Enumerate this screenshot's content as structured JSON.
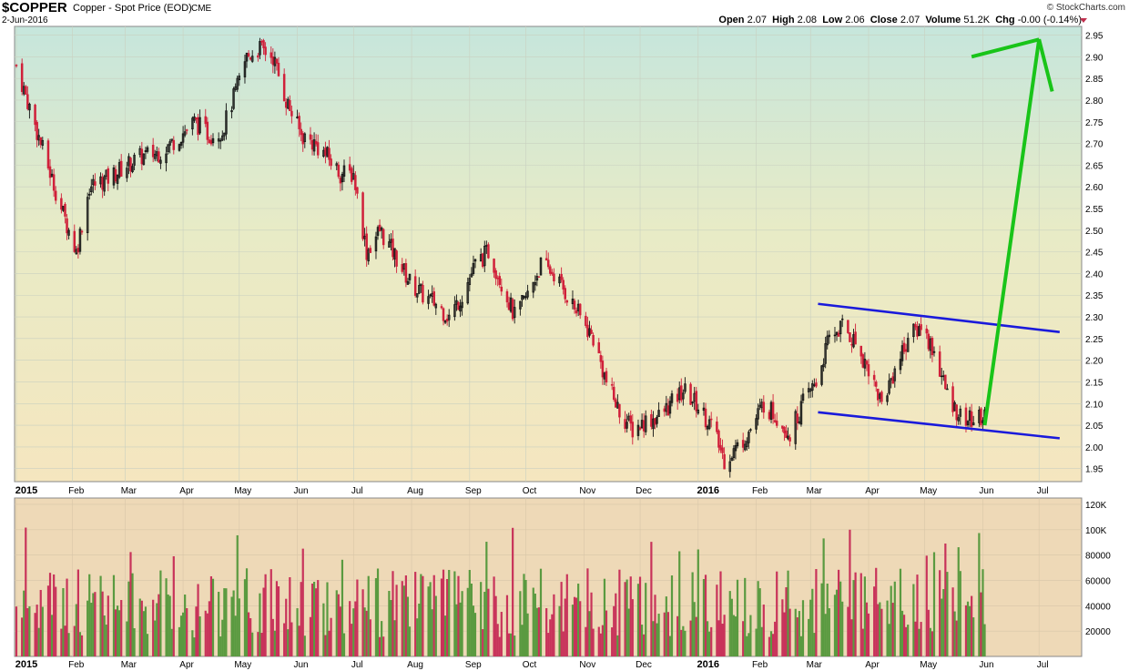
{
  "header": {
    "symbol": "$COPPER",
    "description": "Copper - Spot Price (EOD)",
    "exchange": "CME",
    "date": "2-Jun-2016",
    "credit": "© StockCharts.com",
    "open_label": "Open",
    "open": "2.07",
    "high_label": "High",
    "high": "2.08",
    "low_label": "Low",
    "low": "2.06",
    "close_label": "Close",
    "close": "2.07",
    "volume_label": "Volume",
    "volume": "51.2K",
    "chg_label": "Chg",
    "chg": "-0.00 (-0.14%)"
  },
  "colors": {
    "up": "#2a9a2a",
    "down": "#d0203a",
    "channel": "#1a1adb",
    "projection": "#19c419",
    "vol_up": "#5a9a40",
    "vol_down": "#c8335a"
  },
  "chart_data": [
    {
      "type": "candlestick",
      "ylim": [
        1.92,
        2.97
      ],
      "yticks": [
        "2.95",
        "2.90",
        "2.85",
        "2.80",
        "2.75",
        "2.70",
        "2.65",
        "2.60",
        "2.55",
        "2.50",
        "2.45",
        "2.40",
        "2.35",
        "2.30",
        "2.25",
        "2.20",
        "2.15",
        "2.10",
        "2.05",
        "2.00",
        "1.95"
      ],
      "xticks": [
        "2015",
        "Feb",
        "Mar",
        "Apr",
        "May",
        "Jun",
        "Jul",
        "Aug",
        "Sep",
        "Oct",
        "Nov",
        "Dec",
        "2016",
        "Feb",
        "Mar",
        "Apr",
        "May",
        "Jun",
        "Jul"
      ],
      "grid": true,
      "x_start": "2015-01-02",
      "approx_closes": [
        [
          "2015-01-02",
          2.88
        ],
        [
          "2015-01-15",
          2.7
        ],
        [
          "2015-01-26",
          2.55
        ],
        [
          "2015-02-03",
          2.45
        ],
        [
          "2015-02-10",
          2.6
        ],
        [
          "2015-02-20",
          2.62
        ],
        [
          "2015-03-02",
          2.65
        ],
        [
          "2015-03-10",
          2.67
        ],
        [
          "2015-03-20",
          2.68
        ],
        [
          "2015-03-31",
          2.72
        ],
        [
          "2015-04-07",
          2.75
        ],
        [
          "2015-04-15",
          2.72
        ],
        [
          "2015-04-22",
          2.73
        ],
        [
          "2015-04-30",
          2.83
        ],
        [
          "2015-05-05",
          2.9
        ],
        [
          "2015-05-12",
          2.92
        ],
        [
          "2015-05-19",
          2.9
        ],
        [
          "2015-05-26",
          2.8
        ],
        [
          "2015-06-03",
          2.72
        ],
        [
          "2015-06-10",
          2.7
        ],
        [
          "2015-06-17",
          2.67
        ],
        [
          "2015-06-24",
          2.63
        ],
        [
          "2015-07-01",
          2.63
        ],
        [
          "2015-07-08",
          2.45
        ],
        [
          "2015-07-15",
          2.5
        ],
        [
          "2015-07-22",
          2.45
        ],
        [
          "2015-07-31",
          2.38
        ],
        [
          "2015-08-07",
          2.35
        ],
        [
          "2015-08-14",
          2.33
        ],
        [
          "2015-08-21",
          2.3
        ],
        [
          "2015-08-28",
          2.35
        ],
        [
          "2015-09-04",
          2.42
        ],
        [
          "2015-09-11",
          2.45
        ],
        [
          "2015-09-18",
          2.38
        ],
        [
          "2015-09-25",
          2.3
        ],
        [
          "2015-10-02",
          2.35
        ],
        [
          "2015-10-09",
          2.42
        ],
        [
          "2015-10-16",
          2.4
        ],
        [
          "2015-10-23",
          2.35
        ],
        [
          "2015-10-30",
          2.3
        ],
        [
          "2015-11-06",
          2.25
        ],
        [
          "2015-11-13",
          2.15
        ],
        [
          "2015-11-20",
          2.08
        ],
        [
          "2015-11-27",
          2.04
        ],
        [
          "2015-12-04",
          2.06
        ],
        [
          "2015-12-11",
          2.07
        ],
        [
          "2015-12-18",
          2.1
        ],
        [
          "2015-12-24",
          2.13
        ],
        [
          "2015-12-31",
          2.1
        ],
        [
          "2016-01-08",
          2.05
        ],
        [
          "2016-01-15",
          1.97
        ],
        [
          "2016-01-22",
          2.0
        ],
        [
          "2016-01-29",
          2.04
        ],
        [
          "2016-02-05",
          2.1
        ],
        [
          "2016-02-12",
          2.07
        ],
        [
          "2016-02-19",
          2.03
        ],
        [
          "2016-02-26",
          2.1
        ],
        [
          "2016-03-04",
          2.15
        ],
        [
          "2016-03-11",
          2.25
        ],
        [
          "2016-03-18",
          2.28
        ],
        [
          "2016-03-25",
          2.24
        ],
        [
          "2016-04-01",
          2.18
        ],
        [
          "2016-04-08",
          2.1
        ],
        [
          "2016-04-15",
          2.18
        ],
        [
          "2016-04-22",
          2.25
        ],
        [
          "2016-04-29",
          2.28
        ],
        [
          "2016-05-06",
          2.22
        ],
        [
          "2016-05-13",
          2.12
        ],
        [
          "2016-05-20",
          2.07
        ],
        [
          "2016-05-27",
          2.06
        ],
        [
          "2016-06-02",
          2.07
        ]
      ],
      "projection_path": [
        [
          "2016-06-02",
          2.05
        ],
        [
          "2016-07-01",
          2.94
        ],
        [
          "2016-07-08",
          2.82
        ]
      ],
      "projection_stub": [
        [
          "2016-05-26",
          2.9
        ],
        [
          "2016-07-01",
          2.94
        ]
      ],
      "channel_upper": [
        [
          "2016-03-05",
          2.33
        ],
        [
          "2016-07-12",
          2.265
        ]
      ],
      "channel_lower": [
        [
          "2016-03-05",
          2.08
        ],
        [
          "2016-07-12",
          2.02
        ]
      ]
    },
    {
      "type": "bar",
      "name": "Volume",
      "ylim": [
        0,
        125000
      ],
      "yticks": [
        "120K",
        "100K",
        "80000",
        "60000",
        "40000",
        "20000"
      ],
      "xticks": [
        "2015",
        "Feb",
        "Mar",
        "Apr",
        "May",
        "Jun",
        "Jul",
        "Aug",
        "Sep",
        "Oct",
        "Nov",
        "Dec",
        "2016",
        "Feb",
        "Mar",
        "Apr",
        "May",
        "Jun",
        "Jul"
      ]
    }
  ]
}
